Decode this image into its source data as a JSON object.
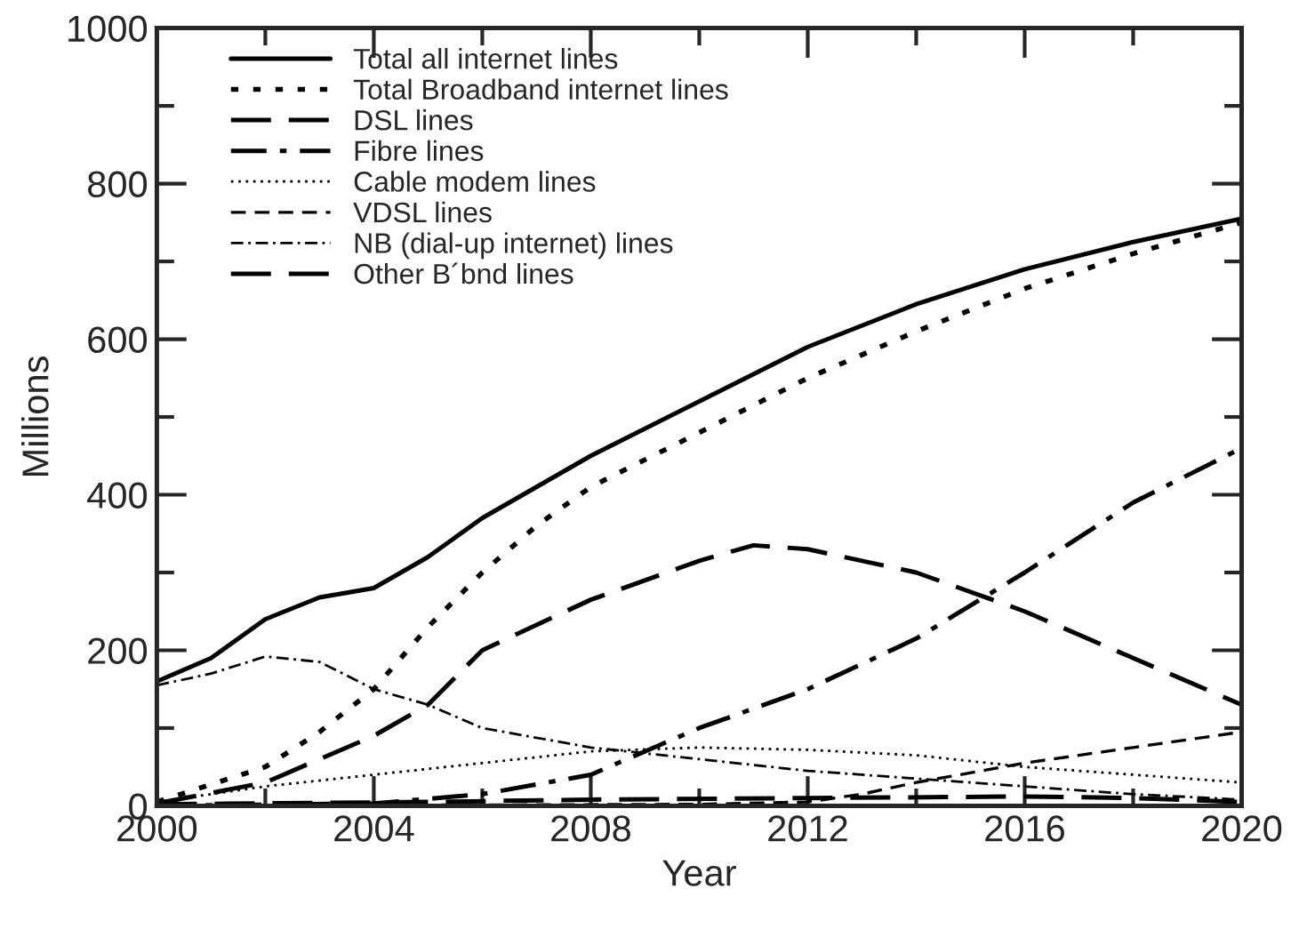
{
  "chart_data": {
    "type": "line",
    "xlabel": "Year",
    "ylabel": "Millions",
    "xlim": [
      2000,
      2020
    ],
    "xticks": [
      2000,
      2004,
      2008,
      2012,
      2016,
      2020
    ],
    "ylim": [
      0,
      1000
    ],
    "yticks": [
      0,
      200,
      400,
      600,
      800,
      1000
    ],
    "grid": false,
    "legend": "top left",
    "series": [
      {
        "name": "Total all internet lines",
        "color": "#000000",
        "line_style": "solid",
        "x": [
          2000,
          2001,
          2002,
          2003,
          2004,
          2005,
          2006,
          2007,
          2008,
          2010,
          2012,
          2014,
          2016,
          2018,
          2020
        ],
        "values": [
          160,
          190,
          240,
          268,
          280,
          320,
          370,
          410,
          450,
          520,
          590,
          645,
          690,
          725,
          755
        ]
      },
      {
        "name": "Total Broadband internet lines",
        "color": "#000000",
        "line_style": "dotted",
        "x": [
          2000,
          2002,
          2003,
          2004,
          2005,
          2006,
          2007,
          2008,
          2010,
          2012,
          2014,
          2016,
          2018,
          2020
        ],
        "values": [
          5,
          50,
          95,
          150,
          230,
          300,
          360,
          410,
          480,
          550,
          610,
          665,
          710,
          750
        ]
      },
      {
        "name": "DSL lines",
        "color": "#000000",
        "line_style": "longdashed",
        "x": [
          2000,
          2002,
          2004,
          2005,
          2006,
          2008,
          2010,
          2011,
          2012,
          2014,
          2016,
          2018,
          2020
        ],
        "values": [
          3,
          30,
          90,
          130,
          200,
          265,
          315,
          335,
          330,
          300,
          250,
          190,
          130
        ]
      },
      {
        "name": "Fibre lines",
        "color": "#000000",
        "line_style": "dashdot",
        "x": [
          2000,
          2004,
          2006,
          2008,
          2009,
          2010,
          2012,
          2014,
          2016,
          2018,
          2020
        ],
        "values": [
          0,
          3,
          15,
          40,
          70,
          100,
          150,
          215,
          300,
          390,
          460
        ]
      },
      {
        "name": "Cable modem lines",
        "color": "#000000",
        "line_style": "finedotted",
        "x": [
          2000,
          2002,
          2004,
          2006,
          2008,
          2010,
          2012,
          2014,
          2016,
          2018,
          2020
        ],
        "values": [
          5,
          25,
          40,
          55,
          70,
          75,
          72,
          65,
          50,
          40,
          30
        ]
      },
      {
        "name": "VDSL lines",
        "color": "#000000",
        "line_style": "dashed",
        "x": [
          2000,
          2010,
          2012,
          2013,
          2014,
          2016,
          2018,
          2020
        ],
        "values": [
          0,
          2,
          5,
          15,
          30,
          55,
          75,
          95
        ]
      },
      {
        "name": "NB (dial-up internet) lines",
        "color": "#000000",
        "line_style": "finedashdot",
        "x": [
          2000,
          2001,
          2002,
          2003,
          2004,
          2005,
          2006,
          2008,
          2010,
          2012,
          2014,
          2016,
          2018,
          2020
        ],
        "values": [
          155,
          170,
          192,
          185,
          150,
          130,
          100,
          75,
          60,
          45,
          35,
          25,
          15,
          8
        ]
      },
      {
        "name": "Other B´bnd lines",
        "color": "#000000",
        "line_style": "longdashed",
        "x": [
          2000,
          2005,
          2008,
          2012,
          2016,
          2018,
          2020
        ],
        "values": [
          2,
          5,
          8,
          10,
          12,
          10,
          5
        ]
      }
    ]
  }
}
